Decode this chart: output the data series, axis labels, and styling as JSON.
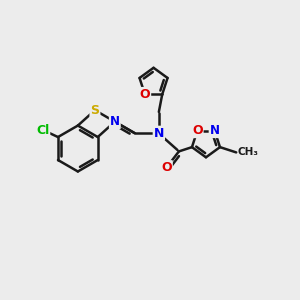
{
  "background_color": "#ececec",
  "bond_color": "#1a1a1a",
  "bond_width": 1.8,
  "atom_colors": {
    "N": "#0000ee",
    "O": "#dd0000",
    "S": "#ccaa00",
    "Cl": "#00bb00",
    "C": "#1a1a1a"
  },
  "figsize": [
    3.0,
    3.0
  ],
  "dpi": 100
}
